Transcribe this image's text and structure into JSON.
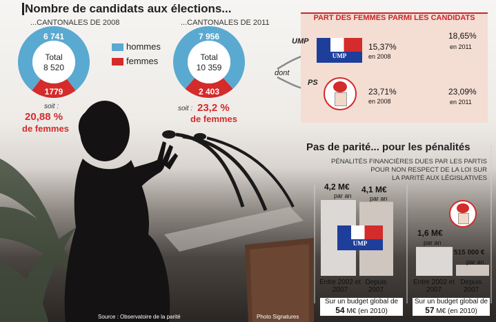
{
  "title": "Nombre de candidats aux élections...",
  "colors": {
    "hommes": "#5aa9d1",
    "femmes": "#d42b2b",
    "panel": "#f4ddd3",
    "accent_red": "#d42b2b",
    "ump_blue": "#1d3e9a"
  },
  "legend": {
    "hommes": "hommes",
    "femmes": "femmes"
  },
  "chart_data": [
    {
      "type": "pie",
      "subtitle": "...CANTONALES DE 2008",
      "slices": [
        {
          "label": "hommes",
          "value": 6741
        },
        {
          "label": "femmes",
          "value": 1779
        }
      ],
      "slice_labels": {
        "hommes": "6 741",
        "femmes": "1779"
      },
      "total_label": "Total",
      "total_value": "8 520",
      "soit": "soit :",
      "pct": "20,88 %",
      "pct_label": "de femmes"
    },
    {
      "type": "pie",
      "subtitle": "...CANTONALES DE 2011",
      "slices": [
        {
          "label": "hommes",
          "value": 7956
        },
        {
          "label": "femmes",
          "value": 2403
        }
      ],
      "slice_labels": {
        "hommes": "7 956",
        "femmes": "2 403"
      },
      "total_label": "Total",
      "total_value": "10 359",
      "soit": "soit :",
      "pct": "23,2 %",
      "pct_label": "de femmes"
    },
    {
      "type": "table",
      "title": "PART DES FEMMES PARMI LES CANDIDATS",
      "dont": "dont",
      "rows": [
        {
          "party": "UMP",
          "v2008": "15,37%",
          "y2008": "en 2008",
          "v2011": "18,65%",
          "y2011": "en 2011"
        },
        {
          "party": "PS",
          "v2008": "23,71%",
          "y2008": "en 2008",
          "v2011": "23,09%",
          "y2011": "en 2011"
        }
      ]
    },
    {
      "type": "bar",
      "title": "Pas de parité... pour les pénalités",
      "description": [
        "PÉNALITÉS FINANCIÈRES DUES PAR LES PARTIS",
        "POUR NON RESPECT DE LA LOI SUR",
        "LA PARITÉ AUX LÉGISLATIVES"
      ],
      "groups": [
        {
          "party": "UMP",
          "categories": [
            "Entre 2002 et 2007",
            "Depuis 2007"
          ],
          "values": [
            4200000,
            4100000
          ],
          "value_labels": [
            "4,2 M€",
            "4,1 M€"
          ],
          "per": "par an",
          "budget_line1": "Sur un budget global de",
          "budget_value": "54",
          "budget_unit": "M€ (en 2010)"
        },
        {
          "party": "PS",
          "categories": [
            "Entre 2002 et 2007",
            "Depuis 2007"
          ],
          "values": [
            1600000,
            515000
          ],
          "value_labels": [
            "1,6 M€",
            "515 000 €"
          ],
          "per": "par an",
          "budget_line1": "Sur un budget global de",
          "budget_value": "57",
          "budget_unit": "M€ (en 2010)"
        }
      ]
    }
  ],
  "ump_logo_text": "UMP",
  "credits": {
    "source": "Source : Observatoire de la parité",
    "photo": "Photo Signatures"
  }
}
